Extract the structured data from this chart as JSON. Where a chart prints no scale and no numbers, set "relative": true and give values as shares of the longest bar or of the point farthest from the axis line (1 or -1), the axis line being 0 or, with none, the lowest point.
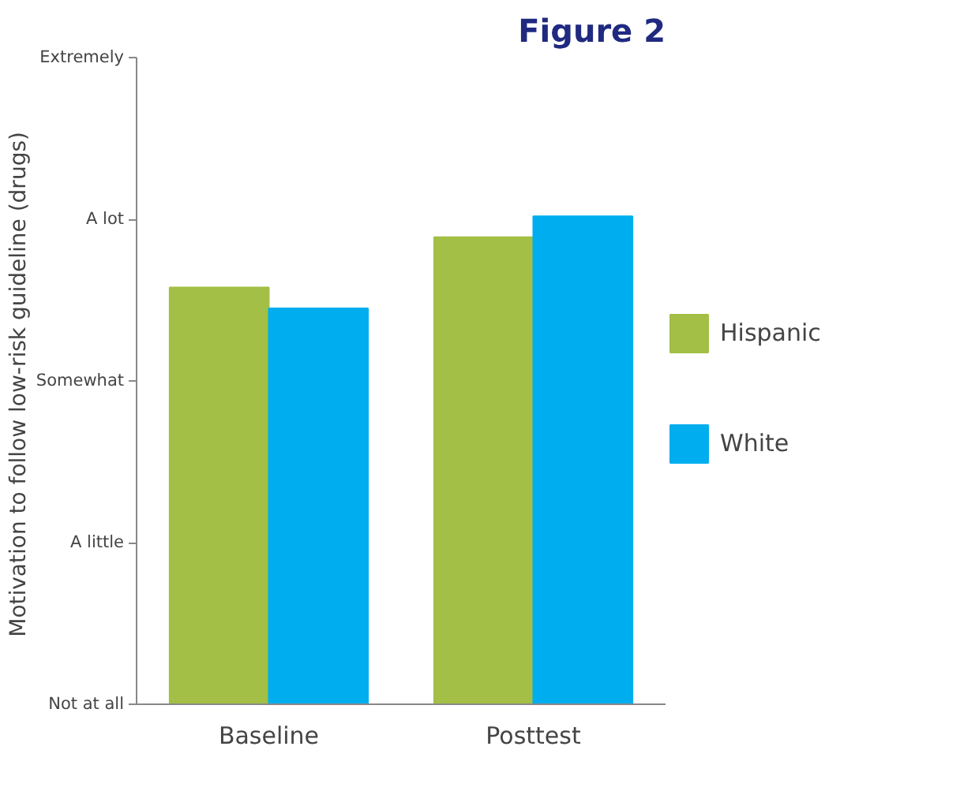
{
  "chart_data": {
    "type": "bar",
    "title": "Figure 2",
    "ylabel": "Motivation to follow low-risk guideline  (drugs)",
    "categories": [
      "Baseline",
      "Posttest"
    ],
    "relative": true,
    "series": [
      {
        "name": "Hispanic",
        "color": "#a3bf45",
        "values": [
          0.854,
          0.957
        ]
      },
      {
        "name": "White",
        "color": "#00aeef",
        "values": [
          0.811,
          1
        ]
      }
    ],
    "annotations": [
      "Not at all",
      "A little",
      "Somewhat",
      "A lot",
      "Extremely"
    ],
    "legend": "right"
  }
}
